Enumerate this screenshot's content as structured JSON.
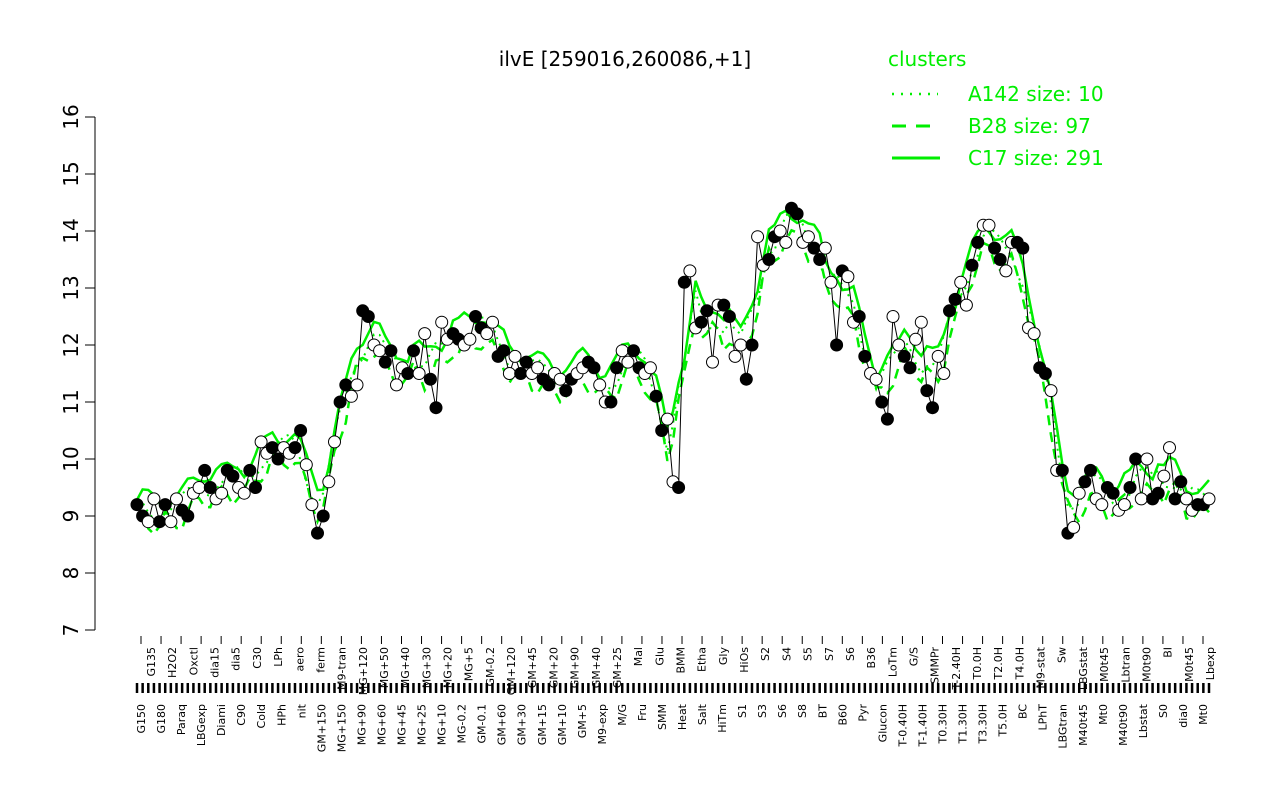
{
  "chart_data": {
    "type": "line",
    "title": "ilvE [259016,260086,+1]",
    "xlabel": "",
    "ylabel": "",
    "ylim": [
      7,
      16
    ],
    "y_ticks": [
      7,
      8,
      9,
      10,
      11,
      12,
      13,
      14,
      15,
      16
    ],
    "grid": false,
    "legend": {
      "title": "clusters",
      "placement": "top-right",
      "entries": [
        {
          "label": "A142 size: 10",
          "style": "dotted"
        },
        {
          "label": "B28 size: 97",
          "style": "dashed"
        },
        {
          "label": "C17 size: 291",
          "style": "solid"
        }
      ]
    },
    "colors": {
      "cluster": "#00ee00",
      "points": "#000000",
      "hollow": "#ffffff"
    },
    "x_tick_labels_lower": [
      "G150",
      "G180",
      "Paraq",
      "LBGexp",
      "Diami",
      "C90",
      "Cold",
      "HPh",
      "nit",
      "GM+150",
      "MG+150",
      "MG+90",
      "MG+60",
      "MG+45",
      "MG+25",
      "MG+10",
      "MG-0.2",
      "GM-0.1",
      "GM+60",
      "GM+30",
      "GM+15",
      "GM+10",
      "GM+5",
      "M9-exp",
      "M/G",
      "Fru",
      "SMM",
      "Heat",
      "Salt",
      "HiTm",
      "S1",
      "S3",
      "S6",
      "S8",
      "BT",
      "B60",
      "Pyr",
      "Glucon",
      "T-0.40H",
      "T-1.40H",
      "T0.30H",
      "T1.30H",
      "T3.30H",
      "T5.0H",
      "BC",
      "LPhT",
      "LBGtran",
      "M40t45",
      "Mt0",
      "M40t90",
      "Lbstat",
      "S0",
      "dia0",
      "Mt0"
    ],
    "x_tick_labels_upper": [
      "G135",
      "H2O2",
      "Oxctl",
      "dia15",
      "dia5",
      "C30",
      "LPh",
      "aero",
      "ferm",
      "M9-tran",
      "MG+120",
      "MG+50",
      "MG+40",
      "MG+30",
      "MG+20",
      "MG+5",
      "GM-0.2",
      "GM+120",
      "GM+45",
      "GM+20",
      "GM+90",
      "GM+40",
      "GM+25",
      "Mal",
      "Glu",
      "BMM",
      "Etha",
      "Gly",
      "HiOs",
      "S2",
      "S4",
      "S5",
      "S7",
      "S6",
      "B36",
      "LoTm",
      "G/S",
      "SMMPr",
      "T-2.40H",
      "T0.0H",
      "T2.0H",
      "T4.0H",
      "M9-stat",
      "Sw",
      "LBGstat",
      "M0t45",
      "Lbtran",
      "M0t90",
      "BI",
      "M0t45",
      "Lbexp"
    ],
    "series": [
      {
        "name": "",
        "values": [
          9.2,
          9.0,
          8.9,
          9.3,
          8.9,
          9.2,
          8.9,
          9.3,
          9.1,
          9.0,
          9.4,
          9.5,
          9.8,
          9.5,
          9.3,
          9.4,
          9.8,
          9.7,
          9.5,
          9.4,
          9.8,
          9.5,
          10.3,
          10.1,
          10.2,
          10.0,
          10.2,
          10.1,
          10.2,
          10.5,
          9.9,
          9.2,
          8.7,
          9.0,
          9.6,
          10.3,
          11.0,
          11.3,
          11.1,
          11.3,
          12.6,
          12.5,
          12.0,
          11.9,
          11.7,
          11.9,
          11.3,
          11.6,
          11.5,
          11.9,
          11.5,
          12.2,
          11.4,
          10.9,
          12.4,
          12.1,
          12.2,
          12.1,
          12.0,
          12.1,
          12.5,
          12.3,
          12.2,
          12.4,
          11.8,
          11.9,
          11.5,
          11.8,
          11.5,
          11.7,
          11.5,
          11.6,
          11.4,
          11.3,
          11.5,
          11.4,
          11.2,
          11.4,
          11.5,
          11.6,
          11.7,
          11.6,
          11.3,
          11.0,
          11.0,
          11.6,
          11.9,
          11.7,
          11.9,
          11.6,
          11.5,
          11.6,
          11.1,
          10.5,
          10.7,
          9.6,
          9.5,
          13.1,
          13.3,
          12.3,
          12.4,
          12.6,
          11.7,
          12.7,
          12.7,
          12.5,
          11.8,
          12.0,
          11.4,
          12.0,
          13.9,
          13.4,
          13.5,
          13.9,
          14.0,
          13.8,
          14.4,
          14.3,
          13.8,
          13.9,
          13.7,
          13.5,
          13.7,
          13.1,
          12.0,
          13.3,
          13.2,
          12.4,
          12.5,
          11.8,
          11.5,
          11.4,
          11.0,
          10.7,
          12.5,
          12.0,
          11.8,
          11.6,
          12.1,
          12.4,
          11.2,
          10.9,
          11.8,
          11.5,
          12.6,
          12.8,
          13.1,
          12.7,
          13.4,
          13.8,
          14.1,
          14.1,
          13.7,
          13.5,
          13.3,
          13.8,
          13.8,
          13.7,
          12.3,
          12.2,
          11.6,
          11.5,
          11.2,
          9.8,
          9.8,
          8.7,
          8.8,
          9.4,
          9.6,
          9.8,
          9.3,
          9.2,
          9.5,
          9.4,
          9.1,
          9.2,
          9.5,
          10.0,
          9.3,
          10.0,
          9.3,
          9.4,
          9.7,
          10.2,
          9.3,
          9.6,
          9.3,
          9.1,
          9.2,
          9.2,
          9.3
        ]
      }
    ]
  }
}
